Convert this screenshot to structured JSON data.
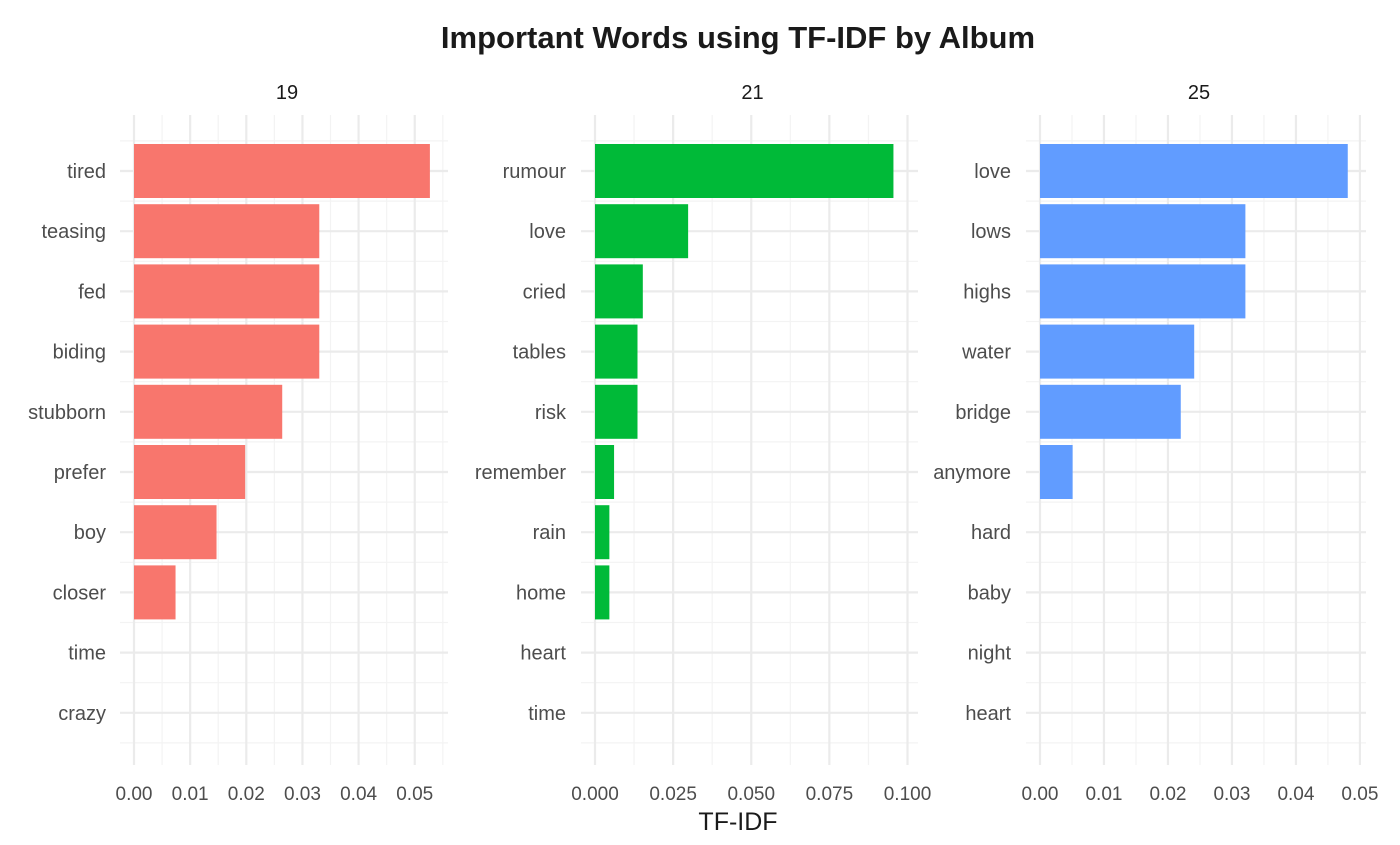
{
  "chart_data": {
    "type": "bar",
    "orientation": "horizontal",
    "title": "Important Words using TF-IDF by Album",
    "xlabel": "TF-IDF",
    "ylabel": "",
    "grid": true,
    "legend": "none",
    "panels": [
      {
        "strip": "19",
        "color": "#F8766D",
        "xlim": [
          0,
          0.0545
        ],
        "ticks": [
          0,
          0.01,
          0.02,
          0.03,
          0.04,
          0.05
        ],
        "tick_labels": [
          "0.00",
          "0.01",
          "0.02",
          "0.03",
          "0.04",
          "0.05"
        ],
        "categories": [
          "tired",
          "teasing",
          "fed",
          "biding",
          "stubborn",
          "prefer",
          "boy",
          "closer",
          "time",
          "crazy"
        ],
        "values": [
          0.0527,
          0.033,
          0.033,
          0.033,
          0.0264,
          0.0198,
          0.0147,
          0.0074,
          0,
          0
        ]
      },
      {
        "strip": "21",
        "color": "#00BA38",
        "xlim": [
          0,
          0.1008
        ],
        "ticks": [
          0,
          0.025,
          0.05,
          0.075,
          0.1
        ],
        "tick_labels": [
          "0.000",
          "0.025",
          "0.050",
          "0.075",
          "0.100"
        ],
        "categories": [
          "rumour",
          "love",
          "cried",
          "tables",
          "risk",
          "remember",
          "rain",
          "home",
          "heart",
          "time"
        ],
        "values": [
          0.0955,
          0.0298,
          0.0153,
          0.0136,
          0.0136,
          0.0061,
          0.0046,
          0.0046,
          0,
          0
        ]
      },
      {
        "strip": "25",
        "color": "#619CFF",
        "xlim": [
          0,
          0.0497
        ],
        "ticks": [
          0,
          0.01,
          0.02,
          0.03,
          0.04,
          0.05
        ],
        "tick_labels": [
          "0.00",
          "0.01",
          "0.02",
          "0.03",
          "0.04",
          "0.05"
        ],
        "categories": [
          "love",
          "lows",
          "highs",
          "water",
          "bridge",
          "anymore",
          "hard",
          "baby",
          "night",
          "heart"
        ],
        "values": [
          0.0481,
          0.0321,
          0.0321,
          0.0241,
          0.022,
          0.0051,
          0,
          0,
          0,
          0
        ]
      }
    ]
  }
}
